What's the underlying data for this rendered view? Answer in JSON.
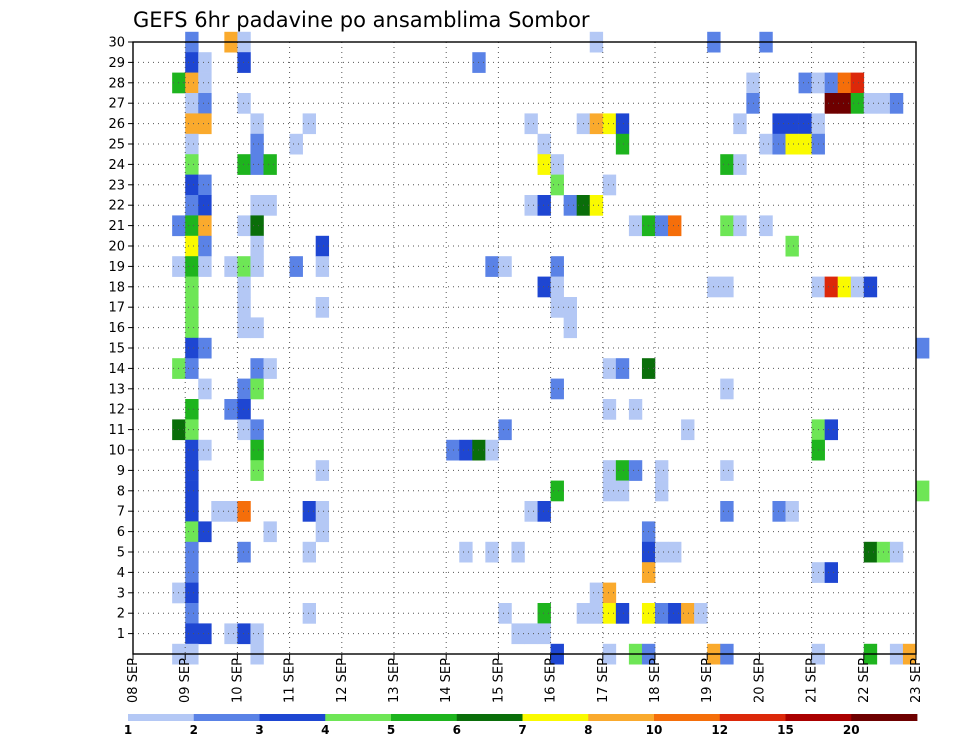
{
  "chart_data": {
    "type": "heatmap",
    "title": "GEFS 6hr padavine po ansamblima Sombor",
    "xlabel": "",
    "ylabel": "",
    "x_ticks": [
      "08 SEP",
      "09 SEP",
      "10 SEP",
      "11 SEP",
      "12 SEP",
      "13 SEP",
      "14 SEP",
      "15 SEP",
      "16 SEP",
      "17 SEP",
      "18 SEP",
      "19 SEP",
      "20 SEP",
      "21 SEP",
      "22 SEP",
      "23 SEP"
    ],
    "y_ticks": [
      1,
      2,
      3,
      4,
      5,
      6,
      7,
      8,
      9,
      10,
      11,
      12,
      13,
      14,
      15,
      16,
      17,
      18,
      19,
      20,
      21,
      22,
      23,
      24,
      25,
      26,
      27,
      28,
      29,
      30
    ],
    "ylim": [
      0,
      30
    ],
    "x_range_days": [
      0,
      15
    ],
    "time_step_hours": 6,
    "grid": true,
    "colorbar": {
      "labels": [
        "1",
        "2",
        "3",
        "4",
        "5",
        "6",
        "7",
        "8",
        "10",
        "12",
        "15",
        "20"
      ],
      "colors": [
        "#b4c8f5",
        "#5a82e6",
        "#1e46d2",
        "#6ee656",
        "#1eb41e",
        "#0a6e0a",
        "#fafa00",
        "#faaa2d",
        "#f56e0a",
        "#dc280a",
        "#aa0000",
        "#6e0000"
      ]
    },
    "cells": [
      [
        30,
        4,
        2
      ],
      [
        30,
        7,
        8
      ],
      [
        30,
        8,
        1
      ],
      [
        30,
        35,
        1
      ],
      [
        30,
        44,
        2
      ],
      [
        30,
        48,
        2
      ],
      [
        29,
        4,
        3
      ],
      [
        29,
        5,
        1
      ],
      [
        29,
        8,
        3
      ],
      [
        29,
        26,
        2
      ],
      [
        28,
        3,
        5
      ],
      [
        28,
        4,
        8
      ],
      [
        28,
        5,
        1
      ],
      [
        28,
        47,
        1
      ],
      [
        28,
        51,
        2
      ],
      [
        28,
        52,
        1
      ],
      [
        28,
        53,
        2
      ],
      [
        28,
        54,
        9
      ],
      [
        28,
        55,
        10
      ],
      [
        27,
        4,
        1
      ],
      [
        27,
        5,
        2
      ],
      [
        27,
        8,
        1
      ],
      [
        27,
        47,
        2
      ],
      [
        27,
        53,
        12
      ],
      [
        27,
        54,
        12
      ],
      [
        27,
        55,
        5
      ],
      [
        27,
        56,
        1
      ],
      [
        27,
        57,
        1
      ],
      [
        27,
        58,
        2
      ],
      [
        26,
        4,
        8
      ],
      [
        26,
        5,
        8
      ],
      [
        26,
        9,
        1
      ],
      [
        26,
        13,
        1
      ],
      [
        26,
        30,
        1
      ],
      [
        26,
        34,
        1
      ],
      [
        26,
        35,
        8
      ],
      [
        26,
        36,
        7
      ],
      [
        26,
        37,
        3
      ],
      [
        26,
        46,
        1
      ],
      [
        26,
        49,
        3
      ],
      [
        26,
        50,
        3
      ],
      [
        26,
        51,
        3
      ],
      [
        26,
        52,
        1
      ],
      [
        25,
        4,
        1
      ],
      [
        25,
        9,
        2
      ],
      [
        25,
        12,
        1
      ],
      [
        25,
        31,
        1
      ],
      [
        25,
        37,
        5
      ],
      [
        25,
        48,
        1
      ],
      [
        25,
        49,
        2
      ],
      [
        25,
        50,
        7
      ],
      [
        25,
        51,
        7
      ],
      [
        25,
        52,
        2
      ],
      [
        24,
        4,
        4
      ],
      [
        24,
        8,
        5
      ],
      [
        24,
        9,
        2
      ],
      [
        24,
        10,
        5
      ],
      [
        24,
        31,
        7
      ],
      [
        24,
        32,
        1
      ],
      [
        24,
        45,
        5
      ],
      [
        24,
        46,
        1
      ],
      [
        23,
        4,
        3
      ],
      [
        23,
        5,
        2
      ],
      [
        23,
        32,
        4
      ],
      [
        23,
        36,
        1
      ],
      [
        22,
        4,
        2
      ],
      [
        22,
        5,
        3
      ],
      [
        22,
        9,
        1
      ],
      [
        22,
        10,
        1
      ],
      [
        22,
        30,
        1
      ],
      [
        22,
        31,
        3
      ],
      [
        22,
        33,
        2
      ],
      [
        22,
        34,
        6
      ],
      [
        22,
        35,
        7
      ],
      [
        21,
        3,
        2
      ],
      [
        21,
        4,
        5
      ],
      [
        21,
        5,
        8
      ],
      [
        21,
        8,
        1
      ],
      [
        21,
        9,
        6
      ],
      [
        21,
        38,
        1
      ],
      [
        21,
        39,
        5
      ],
      [
        21,
        40,
        2
      ],
      [
        21,
        41,
        9
      ],
      [
        21,
        45,
        4
      ],
      [
        21,
        46,
        1
      ],
      [
        21,
        48,
        1
      ],
      [
        20,
        4,
        7
      ],
      [
        20,
        5,
        2
      ],
      [
        20,
        9,
        1
      ],
      [
        20,
        14,
        3
      ],
      [
        20,
        50,
        4
      ],
      [
        19,
        3,
        1
      ],
      [
        19,
        4,
        5
      ],
      [
        19,
        5,
        1
      ],
      [
        19,
        7,
        1
      ],
      [
        19,
        8,
        4
      ],
      [
        19,
        9,
        1
      ],
      [
        19,
        12,
        2
      ],
      [
        19,
        14,
        1
      ],
      [
        19,
        27,
        2
      ],
      [
        19,
        28,
        1
      ],
      [
        19,
        32,
        2
      ],
      [
        18,
        4,
        4
      ],
      [
        18,
        8,
        1
      ],
      [
        18,
        31,
        3
      ],
      [
        18,
        32,
        1
      ],
      [
        18,
        44,
        1
      ],
      [
        18,
        45,
        1
      ],
      [
        18,
        52,
        1
      ],
      [
        18,
        53,
        10
      ],
      [
        18,
        54,
        7
      ],
      [
        18,
        55,
        1
      ],
      [
        18,
        56,
        3
      ],
      [
        17,
        4,
        4
      ],
      [
        17,
        8,
        1
      ],
      [
        17,
        14,
        1
      ],
      [
        17,
        32,
        1
      ],
      [
        17,
        33,
        1
      ],
      [
        16,
        4,
        4
      ],
      [
        16,
        8,
        1
      ],
      [
        16,
        9,
        1
      ],
      [
        16,
        33,
        1
      ],
      [
        15,
        4,
        3
      ],
      [
        15,
        5,
        2
      ],
      [
        15,
        60,
        2
      ],
      [
        14,
        3,
        4
      ],
      [
        14,
        4,
        2
      ],
      [
        14,
        9,
        2
      ],
      [
        14,
        10,
        1
      ],
      [
        14,
        36,
        1
      ],
      [
        14,
        37,
        2
      ],
      [
        14,
        39,
        6
      ],
      [
        13,
        5,
        1
      ],
      [
        13,
        8,
        2
      ],
      [
        13,
        9,
        4
      ],
      [
        13,
        32,
        2
      ],
      [
        13,
        45,
        1
      ],
      [
        12,
        4,
        5
      ],
      [
        12,
        7,
        2
      ],
      [
        12,
        8,
        3
      ],
      [
        12,
        36,
        1
      ],
      [
        12,
        38,
        1
      ],
      [
        11,
        3,
        6
      ],
      [
        11,
        4,
        4
      ],
      [
        11,
        8,
        1
      ],
      [
        11,
        9,
        2
      ],
      [
        11,
        28,
        2
      ],
      [
        11,
        42,
        1
      ],
      [
        11,
        52,
        4
      ],
      [
        11,
        53,
        3
      ],
      [
        10,
        4,
        3
      ],
      [
        10,
        5,
        1
      ],
      [
        10,
        9,
        5
      ],
      [
        10,
        24,
        2
      ],
      [
        10,
        25,
        3
      ],
      [
        10,
        26,
        6
      ],
      [
        10,
        27,
        1
      ],
      [
        10,
        52,
        5
      ],
      [
        9,
        4,
        3
      ],
      [
        9,
        9,
        4
      ],
      [
        9,
        14,
        1
      ],
      [
        9,
        36,
        1
      ],
      [
        9,
        37,
        5
      ],
      [
        9,
        38,
        2
      ],
      [
        9,
        40,
        1
      ],
      [
        9,
        45,
        1
      ],
      [
        8,
        4,
        3
      ],
      [
        8,
        32,
        5
      ],
      [
        8,
        36,
        1
      ],
      [
        8,
        37,
        1
      ],
      [
        8,
        40,
        1
      ],
      [
        8,
        60,
        4
      ],
      [
        7,
        4,
        3
      ],
      [
        7,
        6,
        1
      ],
      [
        7,
        7,
        1
      ],
      [
        7,
        8,
        9
      ],
      [
        7,
        13,
        3
      ],
      [
        7,
        14,
        1
      ],
      [
        7,
        30,
        1
      ],
      [
        7,
        31,
        3
      ],
      [
        7,
        45,
        2
      ],
      [
        7,
        49,
        2
      ],
      [
        7,
        50,
        1
      ],
      [
        6,
        4,
        4
      ],
      [
        6,
        5,
        3
      ],
      [
        6,
        10,
        1
      ],
      [
        6,
        14,
        1
      ],
      [
        6,
        39,
        2
      ],
      [
        5,
        4,
        2
      ],
      [
        5,
        8,
        2
      ],
      [
        5,
        13,
        1
      ],
      [
        5,
        25,
        1
      ],
      [
        5,
        27,
        1
      ],
      [
        5,
        29,
        1
      ],
      [
        5,
        39,
        3
      ],
      [
        5,
        40,
        1
      ],
      [
        5,
        41,
        1
      ],
      [
        5,
        56,
        6
      ],
      [
        5,
        57,
        4
      ],
      [
        5,
        58,
        1
      ],
      [
        4,
        4,
        2
      ],
      [
        4,
        39,
        8
      ],
      [
        4,
        52,
        1
      ],
      [
        4,
        53,
        3
      ],
      [
        3,
        3,
        1
      ],
      [
        3,
        4,
        3
      ],
      [
        3,
        35,
        1
      ],
      [
        3,
        36,
        8
      ],
      [
        2,
        4,
        2
      ],
      [
        2,
        13,
        1
      ],
      [
        2,
        28,
        1
      ],
      [
        2,
        31,
        5
      ],
      [
        2,
        34,
        1
      ],
      [
        2,
        35,
        1
      ],
      [
        2,
        36,
        7
      ],
      [
        2,
        37,
        3
      ],
      [
        2,
        39,
        7
      ],
      [
        2,
        40,
        2
      ],
      [
        2,
        41,
        3
      ],
      [
        2,
        42,
        8
      ],
      [
        2,
        43,
        1
      ],
      [
        1,
        4,
        3
      ],
      [
        1,
        5,
        3
      ],
      [
        1,
        7,
        1
      ],
      [
        1,
        8,
        3
      ],
      [
        1,
        9,
        1
      ],
      [
        1,
        29,
        1
      ],
      [
        1,
        30,
        1
      ],
      [
        1,
        31,
        1
      ],
      [
        0,
        3,
        1
      ],
      [
        0,
        4,
        1
      ],
      [
        0,
        9,
        1
      ],
      [
        0,
        32,
        3
      ],
      [
        0,
        36,
        1
      ],
      [
        0,
        38,
        4
      ],
      [
        0,
        39,
        2
      ],
      [
        0,
        44,
        8
      ],
      [
        0,
        45,
        2
      ],
      [
        0,
        52,
        1
      ],
      [
        0,
        56,
        5
      ],
      [
        0,
        58,
        1
      ],
      [
        0,
        59,
        8
      ]
    ]
  }
}
